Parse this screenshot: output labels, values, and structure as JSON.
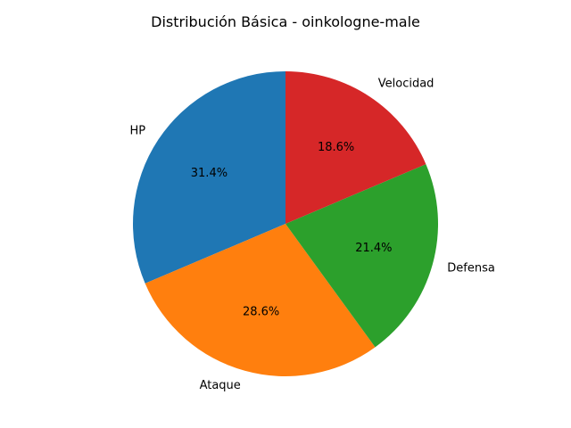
{
  "chart_data": {
    "type": "pie",
    "title": "Distribución Básica - oinkologne-male",
    "categories": [
      "HP",
      "Ataque",
      "Defensa",
      "Velocidad"
    ],
    "values": [
      31.4,
      28.6,
      21.4,
      18.6
    ],
    "value_labels": [
      "31.4%",
      "28.6%",
      "21.4%",
      "18.6%"
    ],
    "colors": [
      "#1f77b4",
      "#ff7f0e",
      "#2ca02c",
      "#d62728"
    ],
    "start_angle_deg": 90,
    "direction": "counterclockwise",
    "legend": "none"
  }
}
